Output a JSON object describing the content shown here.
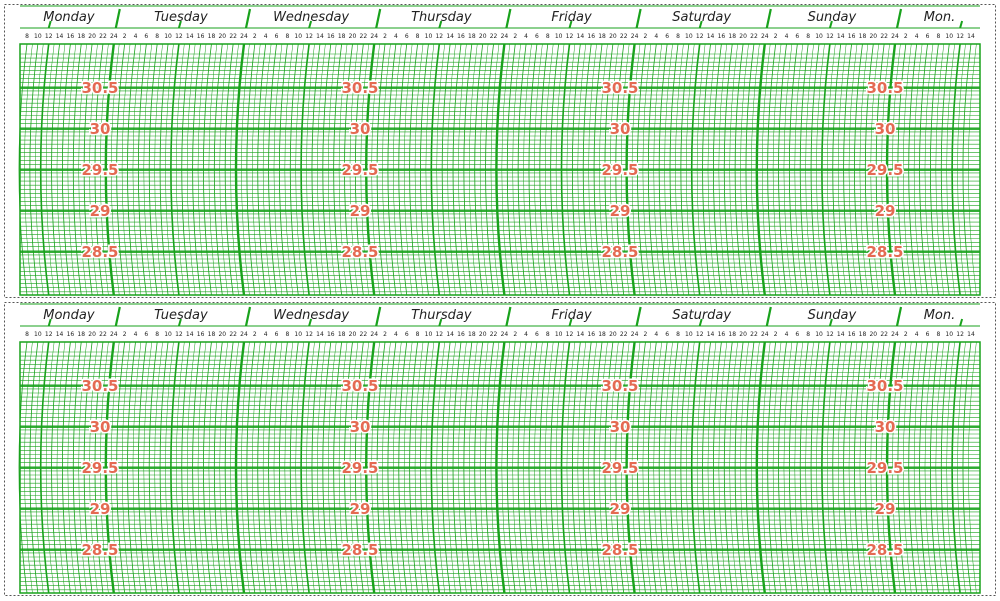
{
  "panels": [
    {
      "days": [
        "Monday",
        "Tuesday",
        "Wednesday",
        "Thursday",
        "Friday",
        "Saturday",
        "Sunday",
        "Mon."
      ],
      "hours": [
        8,
        10,
        12,
        14,
        16,
        18,
        20,
        22,
        24,
        2,
        4,
        6,
        8,
        10,
        12,
        14,
        16,
        18,
        20,
        22,
        24,
        2,
        4,
        6,
        8,
        10,
        12,
        14,
        16,
        18,
        20,
        22,
        24,
        2,
        4,
        6,
        8,
        10,
        12,
        14,
        16,
        18,
        20,
        22,
        24,
        2,
        4,
        6,
        8,
        10,
        12,
        14,
        16,
        18,
        20,
        22,
        24,
        2,
        4,
        6,
        8,
        10,
        12,
        14,
        16,
        18,
        20,
        22,
        24,
        2,
        4,
        6,
        8,
        10,
        12,
        14,
        16,
        18,
        20,
        22,
        24,
        2,
        4,
        6,
        8,
        10,
        12,
        14
      ],
      "pressure": [
        30.5,
        30,
        29.5,
        29,
        28.5
      ]
    },
    {
      "days": [
        "Monday",
        "Tuesday",
        "Wednesday",
        "Thursday",
        "Friday",
        "Saturday",
        "Sunday",
        "Mon."
      ],
      "hours": [
        8,
        10,
        12,
        14,
        16,
        18,
        20,
        22,
        24,
        2,
        4,
        6,
        8,
        10,
        12,
        14,
        16,
        18,
        20,
        22,
        24,
        2,
        4,
        6,
        8,
        10,
        12,
        14,
        16,
        18,
        20,
        22,
        24,
        2,
        4,
        6,
        8,
        10,
        12,
        14,
        16,
        18,
        20,
        22,
        24,
        2,
        4,
        6,
        8,
        10,
        12,
        14,
        16,
        18,
        20,
        22,
        24,
        2,
        4,
        6,
        8,
        10,
        12,
        14,
        16,
        18,
        20,
        22,
        24,
        2,
        4,
        6,
        8,
        10,
        12,
        14,
        16,
        18,
        20,
        22,
        24,
        2,
        4,
        6,
        8,
        10,
        12,
        14
      ],
      "pressure": [
        30.5,
        30,
        29.5,
        29,
        28.5
      ]
    }
  ]
}
